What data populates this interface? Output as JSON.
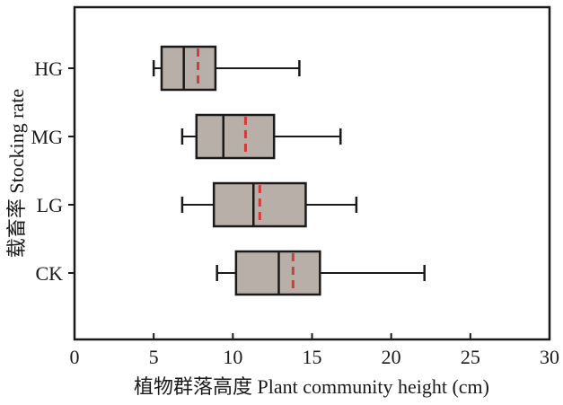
{
  "figure": {
    "background": "#ffffff"
  },
  "chart_data": {
    "type": "box",
    "orientation": "horizontal",
    "title": "",
    "xlabel": "植物群落高度 Plant community height (cm)",
    "ylabel": "载畜率 Stocking rate",
    "xlim": [
      0,
      30
    ],
    "x_ticks": [
      0,
      5,
      10,
      15,
      20,
      25,
      30
    ],
    "grid": false,
    "legend": "none",
    "categories": [
      "HG",
      "MG",
      "LG",
      "CK"
    ],
    "series": [
      {
        "label": "HG",
        "whisker_low": 5.0,
        "q1": 5.5,
        "median": 6.9,
        "mean": 7.8,
        "q3": 8.9,
        "whisker_high": 14.2
      },
      {
        "label": "MG",
        "whisker_low": 6.8,
        "q1": 7.7,
        "median": 9.4,
        "mean": 10.8,
        "q3": 12.6,
        "whisker_high": 16.8
      },
      {
        "label": "LG",
        "whisker_low": 6.8,
        "q1": 8.8,
        "median": 11.3,
        "mean": 11.7,
        "q3": 14.6,
        "whisker_high": 17.8
      },
      {
        "label": "CK",
        "whisker_low": 9.0,
        "q1": 10.2,
        "median": 12.9,
        "mean": 13.8,
        "q3": 15.5,
        "whisker_high": 22.1
      }
    ],
    "colors": {
      "box_fill": "#b7afa8",
      "box_border": "#1a1a1a",
      "median_line": "#1a1a1a",
      "mean_line": "#d03c3c",
      "whisker": "#1a1a1a",
      "frame": "#1a1a1a"
    },
    "mean_line_style": "dashed"
  }
}
